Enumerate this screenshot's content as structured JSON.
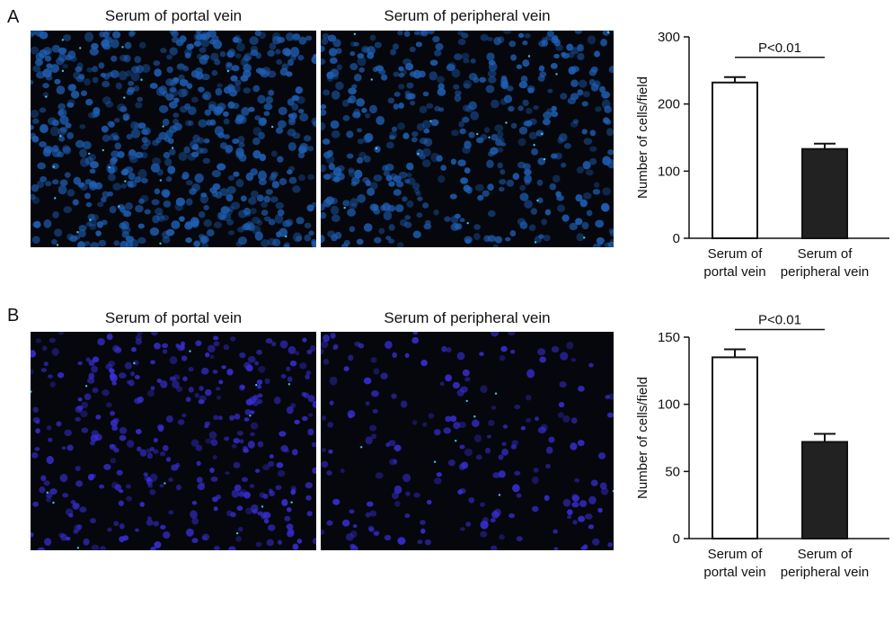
{
  "panels": {
    "A": {
      "letter": "A",
      "image_titles": [
        "Serum of portal vein",
        "Serum of peripheral vein"
      ]
    },
    "B": {
      "letter": "B",
      "image_titles": [
        "Serum of portal vein",
        "Serum of peripheral vein"
      ]
    }
  },
  "colors": {
    "stain_A": "#1f5fb4",
    "stain_B": "#3a2fd8",
    "background": "#05070d",
    "bar_portal": "#ffffff",
    "bar_peripheral": "#222222"
  },
  "chart_data": [
    {
      "type": "bar",
      "panel": "A",
      "categories": [
        [
          "Serum of",
          "portal vein"
        ],
        [
          "Serum of",
          "peripheral vein"
        ]
      ],
      "values": [
        232,
        133
      ],
      "error": [
        8,
        8
      ],
      "ylabel": "Number of cells/field",
      "xlabel": "",
      "ylim": [
        0,
        300
      ],
      "yticks": [
        0,
        100,
        200,
        300
      ],
      "annotation": "P<0.01",
      "fills": [
        "#ffffff",
        "#222222"
      ],
      "grid": false
    },
    {
      "type": "bar",
      "panel": "B",
      "categories": [
        [
          "Serum of",
          "portal vein"
        ],
        [
          "Serum of",
          "peripheral vein"
        ]
      ],
      "values": [
        135,
        72
      ],
      "error": [
        6,
        6
      ],
      "ylabel": "Number of cells/field",
      "xlabel": "",
      "ylim": [
        0,
        150
      ],
      "yticks": [
        0,
        50,
        100,
        150
      ],
      "annotation": "P<0.01",
      "fills": [
        "#ffffff",
        "#222222"
      ],
      "grid": false
    }
  ]
}
